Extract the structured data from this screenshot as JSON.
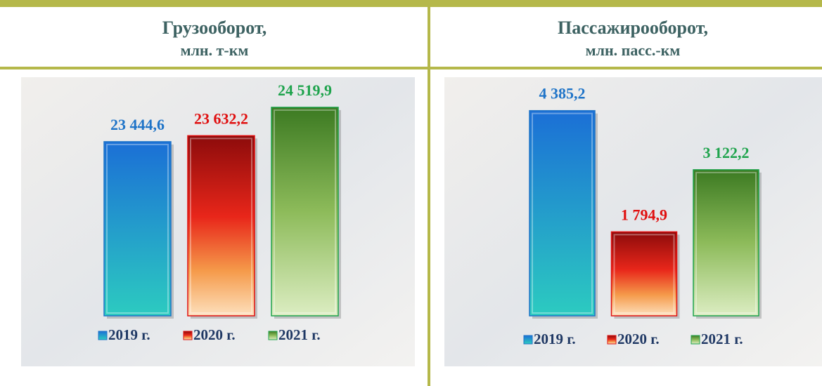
{
  "chart_data": [
    {
      "type": "bar",
      "title": "Грузооборот,",
      "subtitle": "млн. т-км",
      "ylim": [
        18000,
        25000
      ],
      "legend": "bottom",
      "series": [
        {
          "name": "2019 г.",
          "color": "#1f74c8",
          "values": [
            23444.6
          ],
          "value_labels": [
            "23 444,6"
          ]
        },
        {
          "name": "2020 г.",
          "color": "#e01010",
          "values": [
            23632.2
          ],
          "value_labels": [
            "23 632,2"
          ]
        },
        {
          "name": "2021 г.",
          "color": "#1ea34c",
          "values": [
            24519.9
          ],
          "value_labels": [
            "24 519,9"
          ]
        }
      ]
    },
    {
      "type": "bar",
      "title": "Пассажирооборот,",
      "subtitle": "млн. пасс.-км",
      "ylim": [
        0,
        4800
      ],
      "legend": "bottom",
      "series": [
        {
          "name": "2019 г.",
          "color": "#1f74c8",
          "values": [
            4385.2
          ],
          "value_labels": [
            "4 385,2"
          ]
        },
        {
          "name": "2020 г.",
          "color": "#e01010",
          "values": [
            1794.9
          ],
          "value_labels": [
            "1 794,9"
          ]
        },
        {
          "name": "2021 г.",
          "color": "#1ea34c",
          "values": [
            3122.2
          ],
          "value_labels": [
            "3 122,2"
          ]
        }
      ]
    }
  ]
}
